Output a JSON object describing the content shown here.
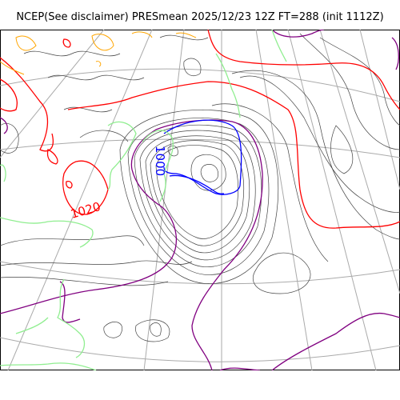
{
  "title": "NCEP(See disclaimer) PRESmean 2025/12/23 12Z FT=288 (init 1112Z)",
  "map": {
    "isobar_labels": {
      "high": "1020",
      "low": "1000"
    },
    "colors": {
      "contour_1020": "#ff0000",
      "contour_1000": "#0000ff",
      "contour_1012": "#800080",
      "coastline": "#90ee90",
      "contour_high_terrain": "#ffa500",
      "graticule": "#aaaaaa",
      "thin_isobar": "#444444"
    }
  }
}
